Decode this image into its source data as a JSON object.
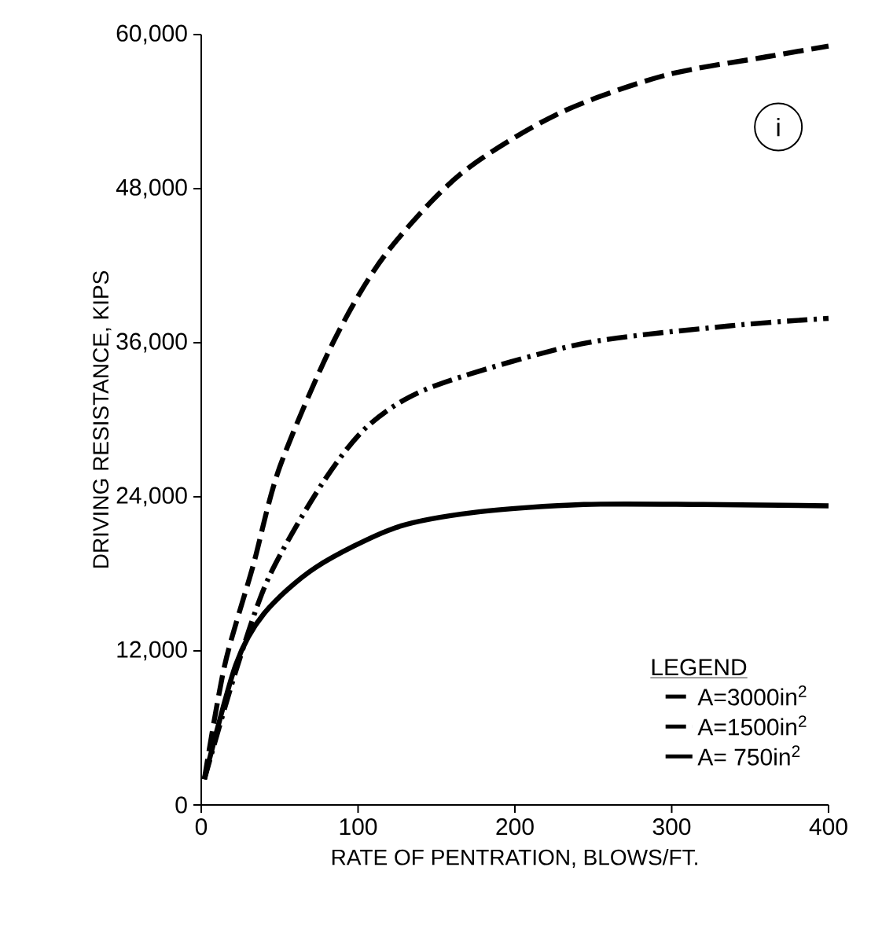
{
  "chart_data": {
    "type": "line",
    "xlabel": "RATE OF PENTRATION, BLOWS/FT.",
    "ylabel": "DRIVING RESISTANCE, KIPS",
    "legend_title": "LEGEND",
    "annotations": [
      "i"
    ],
    "xlim": [
      0,
      400
    ],
    "ylim": [
      0,
      60000
    ],
    "xticks": [
      0,
      100,
      200,
      300,
      400
    ],
    "yticks": [
      0,
      {
        "value": 12000,
        "label": "12,000"
      },
      {
        "value": 24000,
        "label": "24,000"
      },
      {
        "value": 36000,
        "label": "36,000"
      },
      {
        "value": 48000,
        "label": "48,000"
      },
      {
        "value": 60000,
        "label": "60,000"
      }
    ],
    "legend": "bottom right",
    "grid": false,
    "series": [
      {
        "name": "A=3000in$^{2}$",
        "color": "#000000",
        "line_style": "dashed",
        "x": [
          2,
          15,
          33,
          50,
          84,
          117,
          165,
          227,
          295,
          362,
          400
        ],
        "values": [
          2000,
          10900,
          18600,
          26300,
          36000,
          42800,
          49100,
          53800,
          56800,
          58300,
          59100
        ]
      },
      {
        "name": "A=1500in$^{2}$",
        "color": "#000000",
        "line_style": "dashdot",
        "x": [
          2,
          22,
          43,
          77,
          107,
          148,
          242,
          336,
          400
        ],
        "values": [
          2000,
          10400,
          17700,
          25000,
          29600,
          32600,
          35900,
          37300,
          37900
        ]
      },
      {
        "name": "A= 750in$^{2}$",
        "color": "#000000",
        "line_style": "solid",
        "x": [
          2,
          22,
          40,
          73,
          124,
          175,
          244,
          320,
          400
        ],
        "values": [
          2000,
          10900,
          14900,
          18500,
          21600,
          22800,
          23400,
          23400,
          23300
        ]
      }
    ]
  }
}
